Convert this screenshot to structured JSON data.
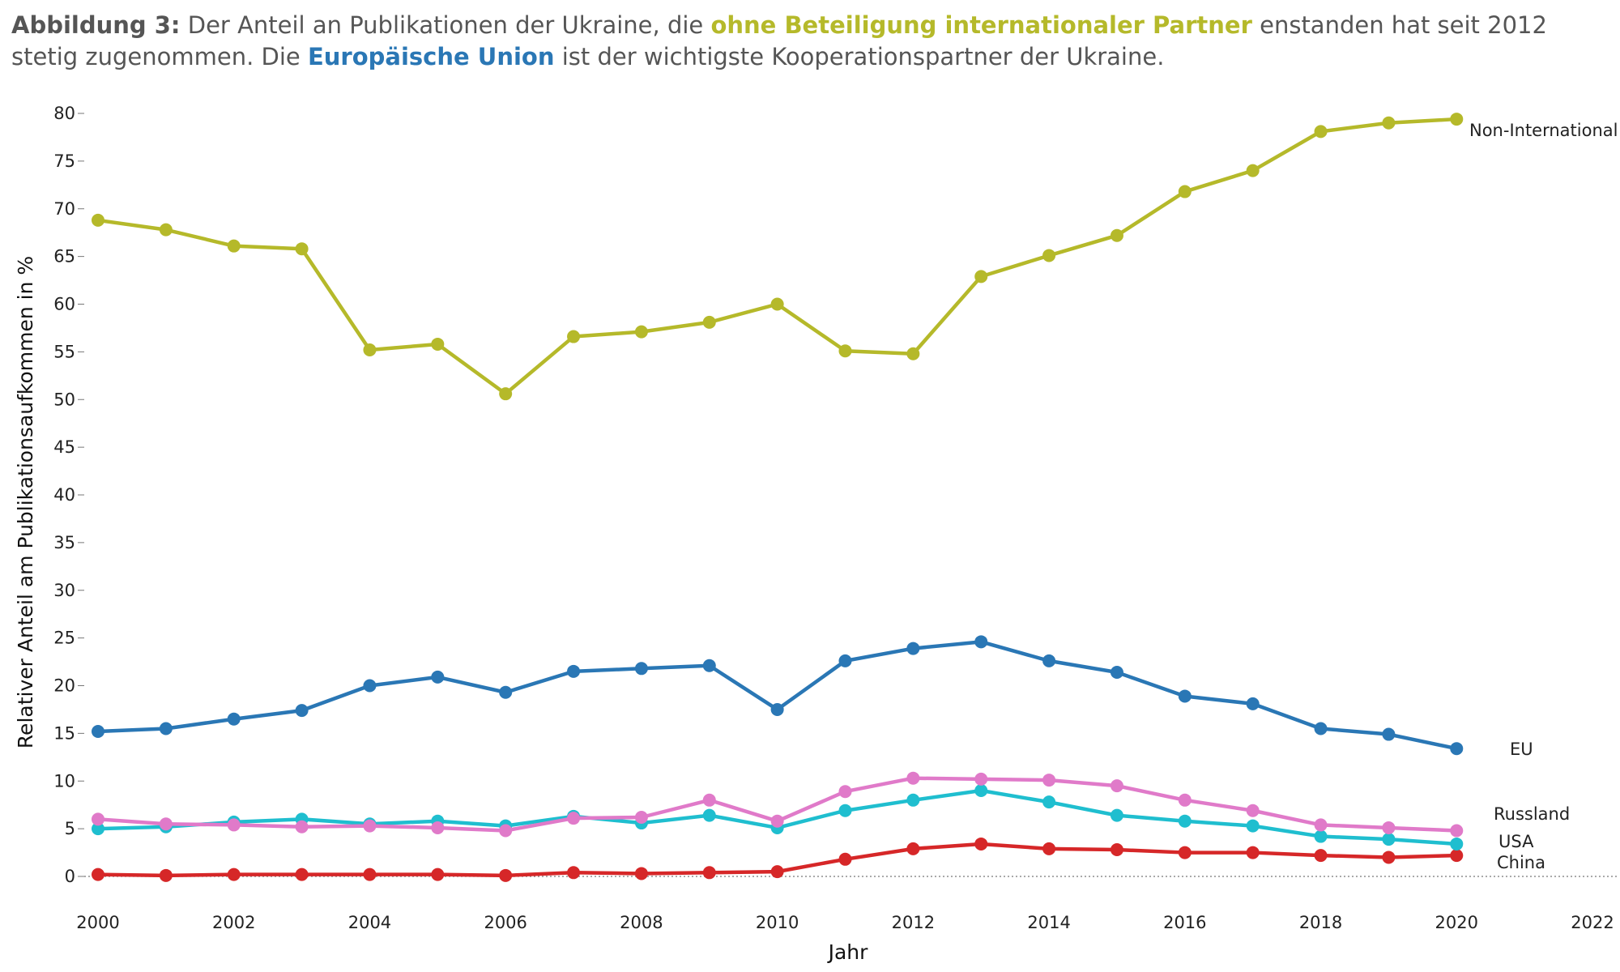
{
  "caption": {
    "lead": "Abbildung 3:",
    "part1": " Der Anteil an Publikationen der Ukraine, die ",
    "highlight1": "ohne Beteiligung internationaler Partner",
    "part2": " enstanden hat seit 2012 stetig zugenommen. Die ",
    "highlight2": "Europäische Union",
    "part3": " ist der wichtigste Kooperationspartner der Ukraine."
  },
  "chart_data": {
    "type": "line",
    "xlabel": "Jahr",
    "ylabel": "Relativer Anteil am Publikationsaufkommen in %",
    "xlim": [
      2000,
      2022
    ],
    "ylim": [
      0,
      80
    ],
    "xticks": [
      "2000",
      "2002",
      "2004",
      "2006",
      "2008",
      "2010",
      "2012",
      "2014",
      "2016",
      "2018",
      "2020",
      "2022"
    ],
    "yticks": [
      "0",
      "5",
      "10",
      "15",
      "20",
      "25",
      "30",
      "35",
      "40",
      "45",
      "50",
      "55",
      "60",
      "65",
      "70",
      "75",
      "80"
    ],
    "grid": false,
    "zero_line": "dotted",
    "x": [
      2000,
      2001,
      2002,
      2003,
      2004,
      2005,
      2006,
      2007,
      2008,
      2009,
      2010,
      2011,
      2012,
      2013,
      2014,
      2015,
      2016,
      2017,
      2018,
      2019,
      2020
    ],
    "series": [
      {
        "name": "Non-International",
        "color": "#b5b92a",
        "values": [
          68.8,
          67.8,
          66.1,
          65.8,
          55.2,
          55.8,
          50.6,
          56.6,
          57.1,
          58.1,
          60.0,
          55.1,
          54.8,
          62.9,
          65.1,
          67.2,
          71.8,
          74.0,
          78.1,
          79.0,
          79.4
        ]
      },
      {
        "name": "EU",
        "color": "#2a77b5",
        "values": [
          15.2,
          15.5,
          16.5,
          17.4,
          20.0,
          20.9,
          19.3,
          21.5,
          21.8,
          22.1,
          17.5,
          22.6,
          23.9,
          24.6,
          22.6,
          21.4,
          18.9,
          18.1,
          15.5,
          14.9,
          13.4
        ]
      },
      {
        "name": "Russland",
        "color": "#e07ac9",
        "values": [
          6.0,
          5.5,
          5.4,
          5.2,
          5.3,
          5.1,
          4.8,
          6.1,
          6.2,
          8.0,
          5.8,
          8.9,
          10.3,
          10.2,
          10.1,
          9.5,
          8.0,
          6.9,
          5.4,
          5.1,
          4.8
        ]
      },
      {
        "name": "USA",
        "color": "#1fbecf",
        "values": [
          5.0,
          5.2,
          5.7,
          6.0,
          5.5,
          5.8,
          5.3,
          6.3,
          5.6,
          6.4,
          5.1,
          6.9,
          8.0,
          9.0,
          7.8,
          6.4,
          5.8,
          5.3,
          4.2,
          3.9,
          3.4
        ]
      },
      {
        "name": "China",
        "color": "#d62728",
        "values": [
          0.2,
          0.1,
          0.2,
          0.2,
          0.2,
          0.2,
          0.1,
          0.4,
          0.3,
          0.4,
          0.5,
          1.8,
          2.9,
          3.4,
          2.9,
          2.8,
          2.5,
          2.5,
          2.2,
          2.0,
          2.2
        ]
      }
    ]
  }
}
